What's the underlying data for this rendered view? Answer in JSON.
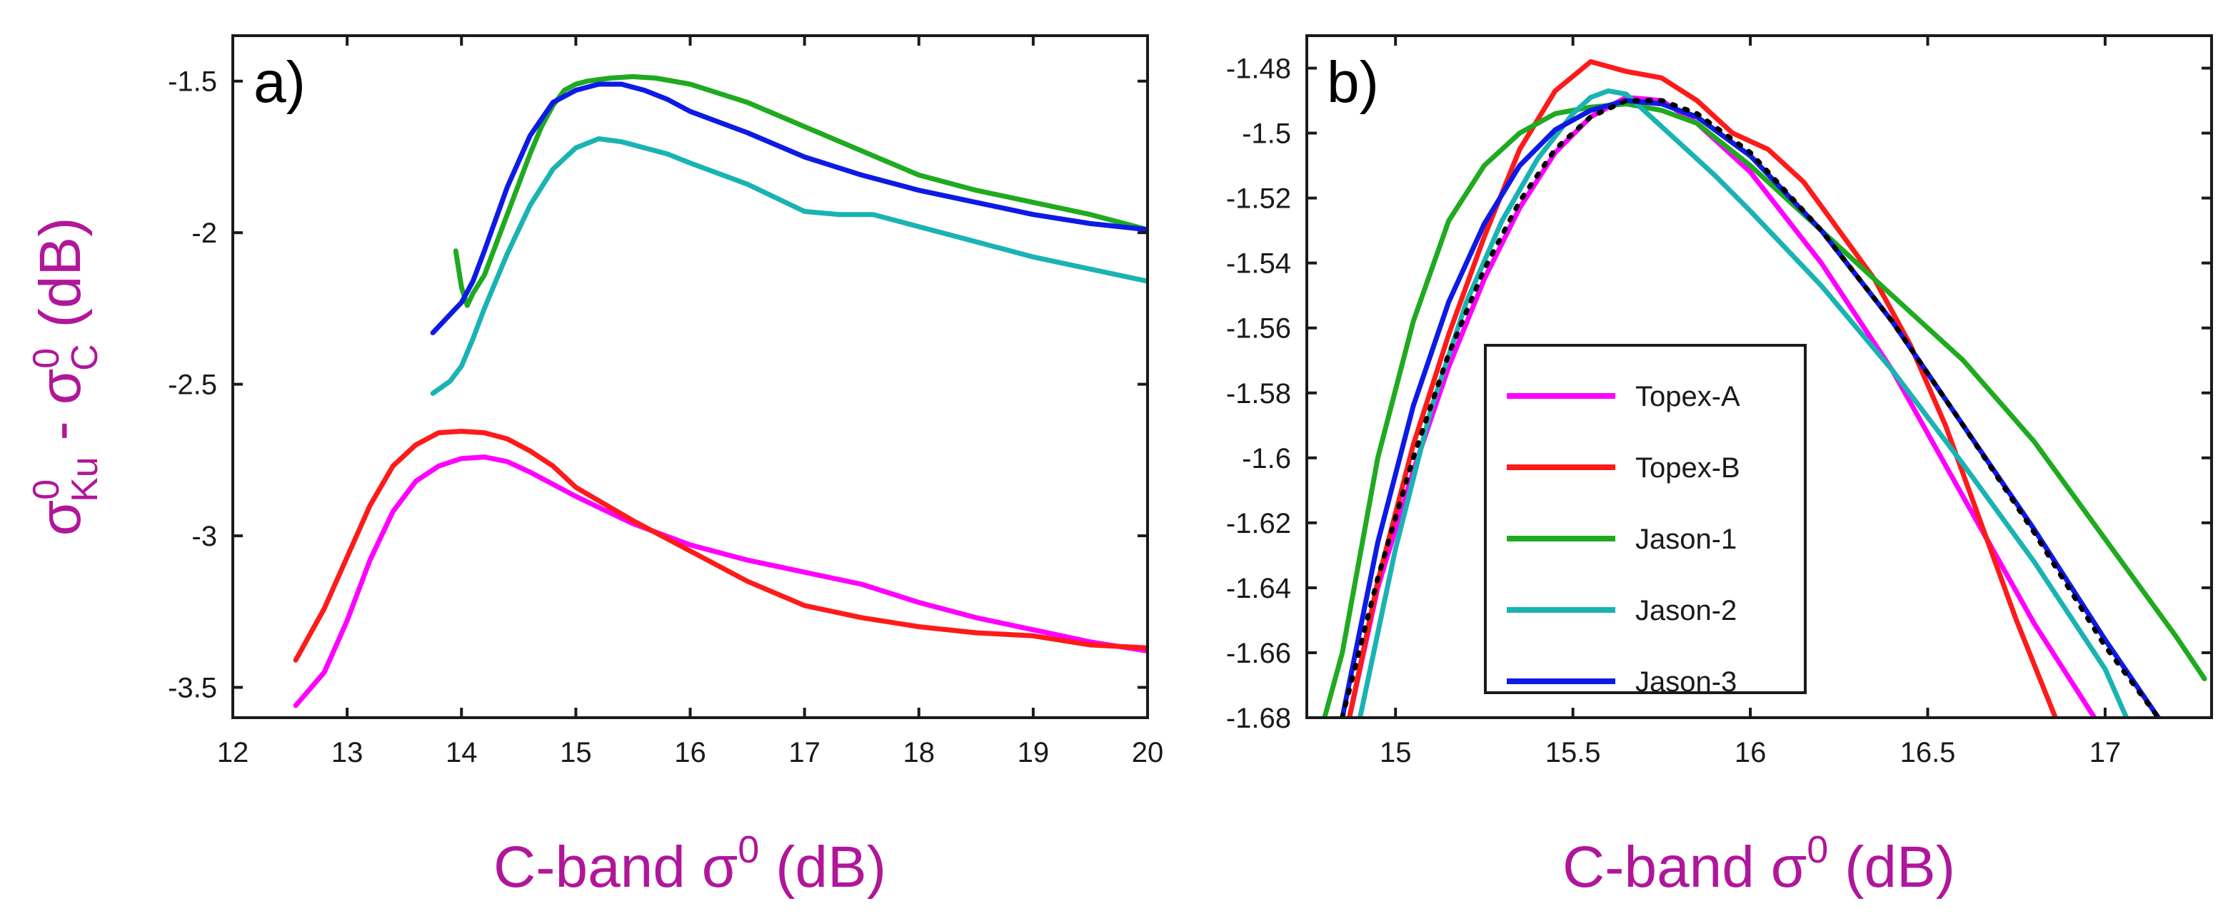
{
  "chart_data": [
    {
      "type": "line",
      "panel_label": "a)",
      "xlabel": "C-band σ",
      "xlabel_sup": "0",
      "xlabel_unit": " (dB)",
      "ylabel_sigma": "σ",
      "ylabel_ku_sup": "0",
      "ylabel_ku_sub": "Ku",
      "ylabel_minus": " - ",
      "ylabel_c_sup": "0",
      "ylabel_c_sub": "C",
      "ylabel_unit": " (dB)",
      "xlim": [
        12,
        20
      ],
      "ylim": [
        -3.6,
        -1.35
      ],
      "xticks": [
        12,
        13,
        14,
        15,
        16,
        17,
        18,
        19,
        20
      ],
      "xtick_labels": [
        "12",
        "13",
        "14",
        "15",
        "16",
        "17",
        "18",
        "19",
        "20"
      ],
      "yticks": [
        -3.5,
        -3,
        -2.5,
        -2,
        -1.5
      ],
      "ytick_labels": [
        "-3.5",
        "-3",
        "-2.5",
        "-2",
        "-1.5"
      ],
      "series": [
        {
          "name": "Topex-A",
          "color": "#ff00ff",
          "x": [
            12.55,
            12.8,
            13.0,
            13.2,
            13.4,
            13.6,
            13.8,
            14.0,
            14.2,
            14.4,
            14.6,
            14.8,
            15.0,
            15.5,
            16.0,
            16.5,
            17.0,
            17.5,
            18.0,
            18.5,
            19.0,
            19.5,
            20.0
          ],
          "y": [
            -3.56,
            -3.45,
            -3.28,
            -3.08,
            -2.92,
            -2.82,
            -2.77,
            -2.745,
            -2.74,
            -2.755,
            -2.79,
            -2.83,
            -2.87,
            -2.96,
            -3.03,
            -3.08,
            -3.12,
            -3.16,
            -3.22,
            -3.27,
            -3.31,
            -3.35,
            -3.38
          ]
        },
        {
          "name": "Topex-B",
          "color": "#ff1a1a",
          "x": [
            12.55,
            12.8,
            13.0,
            13.2,
            13.4,
            13.6,
            13.8,
            14.0,
            14.2,
            14.4,
            14.6,
            14.8,
            15.0,
            15.5,
            16.0,
            16.5,
            17.0,
            17.5,
            18.0,
            18.5,
            19.0,
            19.5,
            20.0
          ],
          "y": [
            -3.41,
            -3.24,
            -3.07,
            -2.9,
            -2.77,
            -2.7,
            -2.66,
            -2.655,
            -2.66,
            -2.68,
            -2.72,
            -2.77,
            -2.84,
            -2.95,
            -3.05,
            -3.15,
            -3.23,
            -3.27,
            -3.3,
            -3.32,
            -3.33,
            -3.36,
            -3.37
          ]
        },
        {
          "name": "Jason-1",
          "color": "#1faa1f",
          "x": [
            13.95,
            14.0,
            14.05,
            14.1,
            14.2,
            14.3,
            14.4,
            14.5,
            14.6,
            14.7,
            14.8,
            14.9,
            15.0,
            15.1,
            15.3,
            15.5,
            15.7,
            16.0,
            16.5,
            17.0,
            17.5,
            18.0,
            18.5,
            19.0,
            19.5,
            20.0
          ],
          "y": [
            -2.06,
            -2.18,
            -2.24,
            -2.2,
            -2.14,
            -2.04,
            -1.94,
            -1.84,
            -1.74,
            -1.65,
            -1.58,
            -1.53,
            -1.51,
            -1.5,
            -1.49,
            -1.485,
            -1.49,
            -1.51,
            -1.57,
            -1.65,
            -1.73,
            -1.81,
            -1.86,
            -1.9,
            -1.94,
            -1.99
          ]
        },
        {
          "name": "Jason-2",
          "color": "#1ab3b3",
          "x": [
            13.75,
            13.9,
            14.0,
            14.1,
            14.2,
            14.4,
            14.6,
            14.8,
            15.0,
            15.2,
            15.4,
            15.6,
            15.8,
            16.0,
            16.5,
            17.0,
            17.3,
            17.6,
            18.0,
            18.5,
            19.0,
            19.5,
            20.0
          ],
          "y": [
            -2.53,
            -2.49,
            -2.44,
            -2.35,
            -2.25,
            -2.07,
            -1.91,
            -1.79,
            -1.72,
            -1.69,
            -1.7,
            -1.72,
            -1.74,
            -1.77,
            -1.84,
            -1.93,
            -1.94,
            -1.94,
            -1.98,
            -2.03,
            -2.08,
            -2.12,
            -2.16
          ]
        },
        {
          "name": "Jason-3",
          "color": "#0d1ae6",
          "x": [
            13.75,
            13.9,
            14.0,
            14.1,
            14.2,
            14.4,
            14.6,
            14.8,
            15.0,
            15.2,
            15.4,
            15.6,
            15.8,
            16.0,
            16.5,
            17.0,
            17.5,
            18.0,
            18.5,
            19.0,
            19.5,
            20.0
          ],
          "y": [
            -2.33,
            -2.27,
            -2.23,
            -2.16,
            -2.06,
            -1.85,
            -1.68,
            -1.57,
            -1.53,
            -1.51,
            -1.51,
            -1.53,
            -1.56,
            -1.6,
            -1.67,
            -1.75,
            -1.81,
            -1.86,
            -1.9,
            -1.94,
            -1.97,
            -1.99
          ]
        }
      ]
    },
    {
      "type": "line",
      "panel_label": "b)",
      "xlabel": "C-band σ",
      "xlabel_sup": "0",
      "xlabel_unit": " (dB)",
      "xlim": [
        14.75,
        17.3
      ],
      "ylim": [
        -1.68,
        -1.47
      ],
      "xticks": [
        15,
        15.5,
        16,
        16.5,
        17
      ],
      "xtick_labels": [
        "15",
        "15.5",
        "16",
        "16.5",
        "17"
      ],
      "yticks": [
        -1.68,
        -1.66,
        -1.64,
        -1.62,
        -1.6,
        -1.58,
        -1.56,
        -1.54,
        -1.52,
        -1.5,
        -1.48
      ],
      "ytick_labels": [
        "-1.68",
        "-1.66",
        "-1.64",
        "-1.62",
        "-1.6",
        "-1.58",
        "-1.56",
        "-1.54",
        "-1.52",
        "-1.5",
        "-1.48"
      ],
      "legend_location": "center-left",
      "series": [
        {
          "name": "Topex-A",
          "color": "#ff00ff",
          "x": [
            14.87,
            14.95,
            15.05,
            15.15,
            15.25,
            15.35,
            15.45,
            15.55,
            15.65,
            15.75,
            15.85,
            16.0,
            16.2,
            16.4,
            16.6,
            16.8,
            16.97
          ],
          "y": [
            -1.68,
            -1.64,
            -1.604,
            -1.572,
            -1.545,
            -1.523,
            -1.506,
            -1.495,
            -1.489,
            -1.49,
            -1.497,
            -1.512,
            -1.54,
            -1.573,
            -1.612,
            -1.651,
            -1.68
          ]
        },
        {
          "name": "Topex-B",
          "color": "#ff1a1a",
          "x": [
            14.87,
            14.95,
            15.05,
            15.15,
            15.25,
            15.35,
            15.45,
            15.55,
            15.65,
            15.75,
            15.85,
            15.95,
            16.05,
            16.15,
            16.25,
            16.35,
            16.45,
            16.55,
            16.65,
            16.75,
            16.86
          ],
          "y": [
            -1.68,
            -1.638,
            -1.596,
            -1.562,
            -1.532,
            -1.505,
            -1.487,
            -1.478,
            -1.481,
            -1.483,
            -1.49,
            -1.5,
            -1.505,
            -1.515,
            -1.53,
            -1.545,
            -1.565,
            -1.59,
            -1.62,
            -1.65,
            -1.68
          ]
        },
        {
          "name": "Jason-1",
          "color": "#1faa1f",
          "x": [
            14.8,
            14.85,
            14.95,
            15.05,
            15.15,
            15.25,
            15.35,
            15.45,
            15.55,
            15.65,
            15.75,
            15.85,
            16.0,
            16.2,
            16.4,
            16.6,
            16.8,
            17.0,
            17.2,
            17.28
          ],
          "y": [
            -1.68,
            -1.66,
            -1.6,
            -1.558,
            -1.527,
            -1.51,
            -1.5,
            -1.494,
            -1.492,
            -1.491,
            -1.493,
            -1.497,
            -1.51,
            -1.53,
            -1.55,
            -1.57,
            -1.595,
            -1.625,
            -1.655,
            -1.668
          ]
        },
        {
          "name": "Jason-2",
          "color": "#1ab3b3",
          "x": [
            14.9,
            15.0,
            15.1,
            15.2,
            15.3,
            15.4,
            15.5,
            15.55,
            15.6,
            15.65,
            15.7,
            15.8,
            15.9,
            16.0,
            16.2,
            16.4,
            16.6,
            16.8,
            17.0,
            17.06
          ],
          "y": [
            -1.68,
            -1.628,
            -1.585,
            -1.552,
            -1.527,
            -1.508,
            -1.494,
            -1.489,
            -1.487,
            -1.488,
            -1.493,
            -1.503,
            -1.513,
            -1.524,
            -1.547,
            -1.573,
            -1.602,
            -1.632,
            -1.665,
            -1.68
          ]
        },
        {
          "name": "Jason-3",
          "color": "#0d1ae6",
          "x": [
            14.85,
            14.95,
            15.05,
            15.15,
            15.25,
            15.35,
            15.45,
            15.55,
            15.65,
            15.75,
            15.85,
            16.0,
            16.2,
            16.4,
            16.6,
            16.8,
            17.0,
            17.15
          ],
          "y": [
            -1.68,
            -1.626,
            -1.584,
            -1.552,
            -1.528,
            -1.51,
            -1.499,
            -1.493,
            -1.49,
            -1.491,
            -1.495,
            -1.507,
            -1.53,
            -1.558,
            -1.59,
            -1.622,
            -1.656,
            -1.68
          ]
        },
        {
          "name": "fit",
          "color": "#000000",
          "dashed": true,
          "in_legend": false,
          "x": [
            14.85,
            14.95,
            15.05,
            15.15,
            15.25,
            15.35,
            15.45,
            15.55,
            15.65,
            15.75,
            15.85,
            16.0,
            16.2,
            16.4,
            16.6,
            16.8,
            17.0,
            17.15
          ],
          "y": [
            -1.68,
            -1.637,
            -1.6,
            -1.568,
            -1.542,
            -1.521,
            -1.505,
            -1.495,
            -1.49,
            -1.49,
            -1.494,
            -1.506,
            -1.53,
            -1.558,
            -1.59,
            -1.623,
            -1.658,
            -1.68
          ]
        }
      ]
    }
  ]
}
